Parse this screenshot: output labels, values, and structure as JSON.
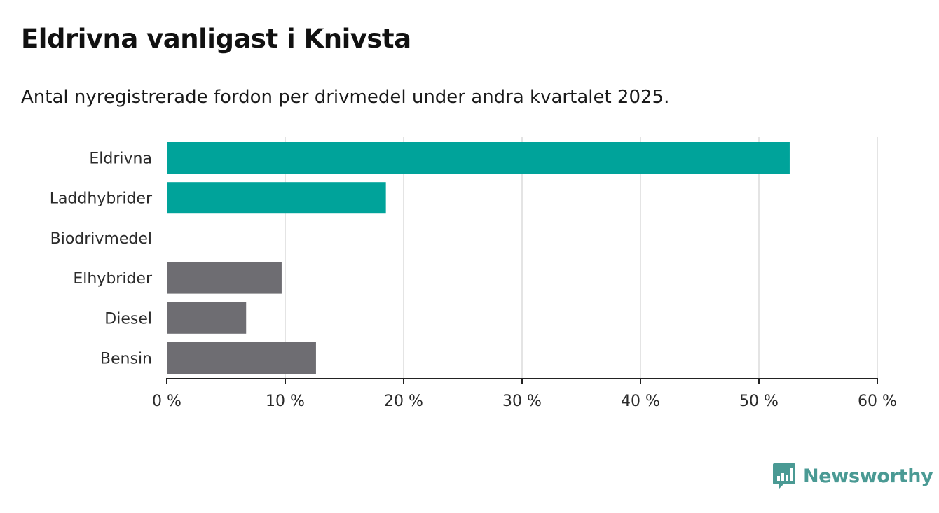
{
  "title": "Eldrivna vanligast i Knivsta",
  "subtitle": "Antal nyregistrerade fordon per drivmedel under andra kvartalet 2025.",
  "brand": {
    "name": "Newsworthy",
    "icon": "bar-chart-speech-bubble-icon",
    "color": "#4a9a94"
  },
  "chart_data": {
    "type": "bar",
    "orientation": "horizontal",
    "categories": [
      "Eldrivna",
      "Laddhybrider",
      "Biodrivmedel",
      "Elhybrider",
      "Diesel",
      "Bensin"
    ],
    "values": [
      52.6,
      18.5,
      0,
      9.7,
      6.7,
      12.6
    ],
    "colors": [
      "#00a39a",
      "#00a39a",
      "#00a39a",
      "#6e6d72",
      "#6e6d72",
      "#6e6d72"
    ],
    "xlim": [
      0,
      60
    ],
    "xticks": [
      0,
      10,
      20,
      30,
      40,
      50,
      60
    ],
    "xtick_labels": [
      "0 %",
      "10 %",
      "20 %",
      "30 %",
      "40 %",
      "50 %",
      "60 %"
    ],
    "unit": "%",
    "grid": true,
    "xlabel": "",
    "ylabel": ""
  }
}
